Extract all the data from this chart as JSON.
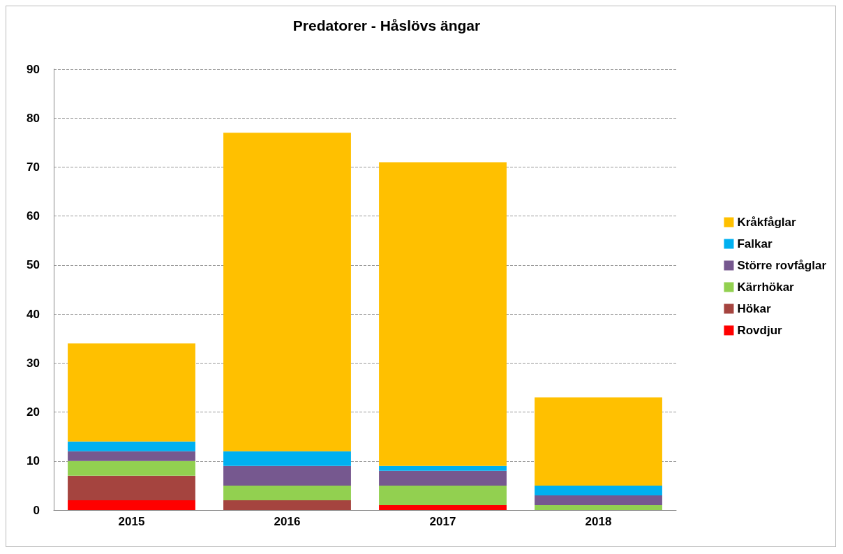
{
  "chart_data": {
    "type": "bar",
    "title": "Predatorer - Håslövs ängar",
    "categories": [
      "2015",
      "2016",
      "2017",
      "2018"
    ],
    "stacked": true,
    "series": [
      {
        "name": "Rovdjur",
        "color": "#ff0000",
        "values": [
          2,
          0,
          1,
          0
        ]
      },
      {
        "name": "Hökar",
        "color": "#a5443f",
        "values": [
          5,
          2,
          0,
          0
        ]
      },
      {
        "name": "Kärrhökar",
        "color": "#92d050",
        "values": [
          3,
          3,
          4,
          1
        ]
      },
      {
        "name": "Större rovfåglar",
        "color": "#76588f",
        "values": [
          2,
          4,
          3,
          2
        ]
      },
      {
        "name": "Falkar",
        "color": "#00b0f0",
        "values": [
          2,
          3,
          1,
          2
        ]
      },
      {
        "name": "Kråkfåglar",
        "color": "#ffc000",
        "values": [
          20,
          65,
          62,
          18
        ]
      }
    ],
    "ylim": [
      0,
      90
    ],
    "yticks": [
      0,
      10,
      20,
      30,
      40,
      50,
      60,
      70,
      80,
      90
    ],
    "grid": "y",
    "legend": "right"
  }
}
